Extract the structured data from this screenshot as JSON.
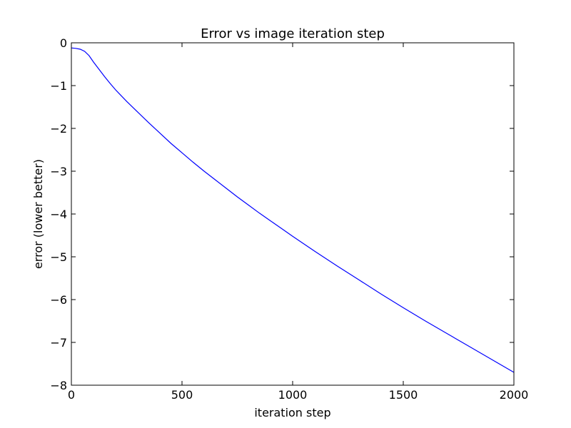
{
  "chart_data": {
    "type": "line",
    "title": "Error vs image iteration step",
    "xlabel": "iteration step",
    "ylabel": "error (lower better)",
    "xlim": [
      0,
      2000
    ],
    "ylim": [
      -8,
      0
    ],
    "xticks": [
      0,
      500,
      1000,
      1500,
      2000
    ],
    "xtick_labels": [
      "0",
      "500",
      "1000",
      "1500",
      "2000"
    ],
    "yticks": [
      0,
      -1,
      -2,
      -3,
      -4,
      -5,
      -6,
      -7,
      -8
    ],
    "ytick_labels": [
      "0",
      "−1",
      "−2",
      "−3",
      "−4",
      "−5",
      "−6",
      "−7",
      "−8"
    ],
    "grid": false,
    "series": [
      {
        "color": "#0000ff",
        "x": [
          0,
          20,
          40,
          60,
          80,
          100,
          125,
          150,
          175,
          200,
          250,
          300,
          350,
          400,
          450,
          500,
          550,
          600,
          650,
          700,
          750,
          800,
          850,
          900,
          950,
          1000,
          1100,
          1200,
          1300,
          1400,
          1500,
          1600,
          1700,
          1800,
          1900,
          2000
        ],
        "y": [
          -0.12,
          -0.13,
          -0.15,
          -0.2,
          -0.3,
          -0.45,
          -0.62,
          -0.79,
          -0.95,
          -1.1,
          -1.37,
          -1.62,
          -1.87,
          -2.11,
          -2.35,
          -2.57,
          -2.79,
          -3.0,
          -3.2,
          -3.4,
          -3.6,
          -3.79,
          -3.98,
          -4.16,
          -4.34,
          -4.52,
          -4.87,
          -5.21,
          -5.54,
          -5.87,
          -6.19,
          -6.5,
          -6.8,
          -7.1,
          -7.4,
          -7.7
        ]
      }
    ]
  }
}
